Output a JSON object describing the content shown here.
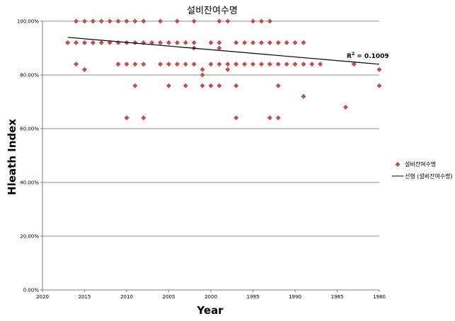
{
  "chart_data": {
    "type": "scatter",
    "title": "설비잔여수명",
    "xlabel": "Year",
    "ylabel": "Hleath Index",
    "x_reversed": true,
    "xlim": [
      2020,
      1980
    ],
    "ylim": [
      0,
      100
    ],
    "x_ticks": [
      "2020",
      "2015",
      "2010",
      "2005",
      "2000",
      "1995",
      "1990",
      "1985",
      "1980"
    ],
    "y_ticks": [
      "0.00%",
      "20.00%",
      "40.00%",
      "60.00%",
      "80.00%",
      "100.00%"
    ],
    "grid": "horizontal",
    "legend_position": "right",
    "series": [
      {
        "name": "설비잔여수명",
        "marker": "diamond",
        "color": "#c0504d",
        "points": [
          [
            2017,
            92
          ],
          [
            2016,
            100
          ],
          [
            2016,
            92
          ],
          [
            2016,
            84
          ],
          [
            2015,
            100
          ],
          [
            2015,
            92
          ],
          [
            2015,
            82
          ],
          [
            2014,
            100
          ],
          [
            2014,
            92
          ],
          [
            2013,
            100
          ],
          [
            2013,
            92
          ],
          [
            2012,
            92
          ],
          [
            2012,
            100
          ],
          [
            2011,
            92
          ],
          [
            2011,
            100
          ],
          [
            2011,
            84
          ],
          [
            2010,
            100
          ],
          [
            2010,
            92
          ],
          [
            2010,
            84
          ],
          [
            2010,
            64
          ],
          [
            2009,
            100
          ],
          [
            2009,
            92
          ],
          [
            2009,
            84
          ],
          [
            2009,
            76
          ],
          [
            2008,
            100
          ],
          [
            2008,
            92
          ],
          [
            2008,
            84
          ],
          [
            2008,
            64
          ],
          [
            2007,
            92
          ],
          [
            2006,
            100
          ],
          [
            2006,
            92
          ],
          [
            2006,
            84
          ],
          [
            2005,
            92
          ],
          [
            2005,
            84
          ],
          [
            2005,
            76
          ],
          [
            2004,
            100
          ],
          [
            2004,
            92
          ],
          [
            2004,
            84
          ],
          [
            2003,
            92
          ],
          [
            2003,
            84
          ],
          [
            2003,
            76
          ],
          [
            2002,
            100
          ],
          [
            2002,
            92
          ],
          [
            2002,
            90
          ],
          [
            2002,
            84
          ],
          [
            2001,
            82
          ],
          [
            2001,
            80
          ],
          [
            2001,
            76
          ],
          [
            2000,
            92
          ],
          [
            2000,
            84
          ],
          [
            2000,
            76
          ],
          [
            1999,
            100
          ],
          [
            1999,
            92
          ],
          [
            1999,
            90
          ],
          [
            1999,
            84
          ],
          [
            1999,
            76
          ],
          [
            1998,
            100
          ],
          [
            1998,
            84
          ],
          [
            1998,
            82
          ],
          [
            1997,
            92
          ],
          [
            1997,
            84
          ],
          [
            1997,
            76
          ],
          [
            1997,
            64
          ],
          [
            1996,
            92
          ],
          [
            1996,
            84
          ],
          [
            1995,
            100
          ],
          [
            1995,
            92
          ],
          [
            1995,
            84
          ],
          [
            1994,
            100
          ],
          [
            1994,
            92
          ],
          [
            1994,
            84
          ],
          [
            1993,
            100
          ],
          [
            1993,
            92
          ],
          [
            1993,
            84
          ],
          [
            1993,
            64
          ],
          [
            1992,
            92
          ],
          [
            1992,
            84
          ],
          [
            1992,
            76
          ],
          [
            1992,
            64
          ],
          [
            1991,
            92
          ],
          [
            1991,
            84
          ],
          [
            1990,
            92
          ],
          [
            1990,
            84
          ],
          [
            1989,
            92
          ],
          [
            1989,
            84
          ],
          [
            1989,
            72
          ],
          [
            1988,
            84
          ],
          [
            1987,
            84
          ],
          [
            1984,
            68
          ],
          [
            1983,
            84
          ],
          [
            1980,
            82
          ],
          [
            1980,
            76
          ]
        ]
      },
      {
        "name": "선형 (설비잔여수명)",
        "type": "trendline",
        "color": "#000000",
        "line": [
          [
            2017,
            94
          ],
          [
            1980,
            84
          ]
        ]
      }
    ],
    "annotations": [
      {
        "superscript_text": "R",
        "sup": "2",
        "value_text": " = 0.1009"
      }
    ]
  }
}
